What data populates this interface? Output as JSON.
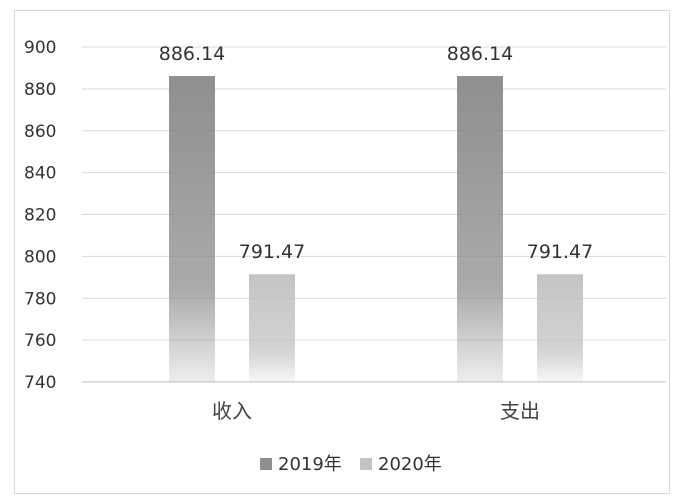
{
  "chart_data": {
    "type": "bar",
    "categories": [
      "收入",
      "支出"
    ],
    "series": [
      {
        "name": "2019年",
        "values": [
          886.14,
          886.14
        ],
        "color": "#8f8f8f"
      },
      {
        "name": "2020年",
        "values": [
          791.47,
          791.47
        ],
        "color": "#c4c4c4"
      }
    ],
    "data_labels": [
      [
        "886.14",
        "886.14"
      ],
      [
        "791.47",
        "791.47"
      ]
    ],
    "ylim": [
      740,
      900
    ],
    "yticks": [
      740,
      760,
      780,
      800,
      820,
      840,
      860,
      880,
      900
    ],
    "grid": true,
    "legend_position": "bottom"
  }
}
